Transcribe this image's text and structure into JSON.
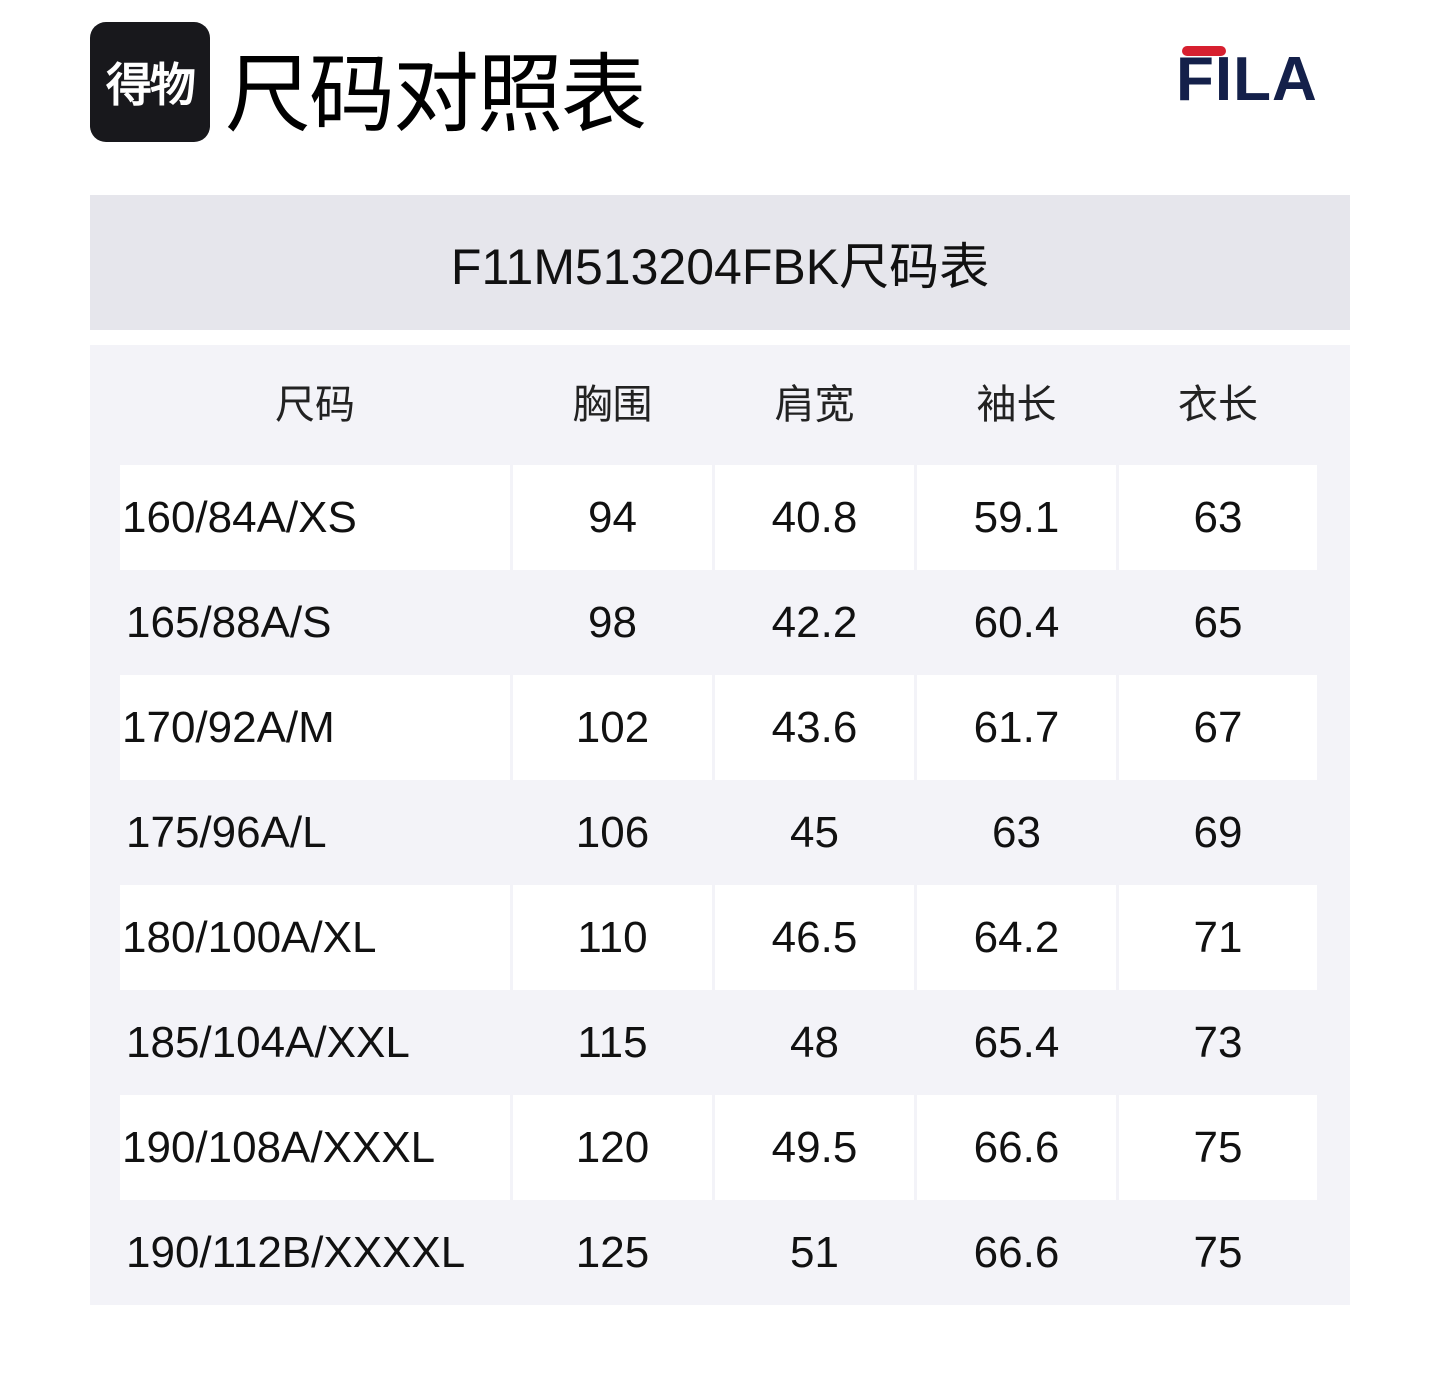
{
  "header": {
    "logo_text": "得物",
    "title": "尺码对照表",
    "brand_logo_text": "FILA",
    "brand_colors": {
      "red": "#d7202f",
      "navy": "#14204a"
    }
  },
  "chart_title": "F11M513204FBK尺码表",
  "table": {
    "columns": [
      "尺码",
      "胸围",
      "肩宽",
      "袖长",
      "衣长"
    ],
    "rows": [
      [
        "160/84A/XS",
        "94",
        "40.8",
        "59.1",
        "63"
      ],
      [
        "165/88A/S",
        "98",
        "42.2",
        "60.4",
        "65"
      ],
      [
        "170/92A/M",
        "102",
        "43.6",
        "61.7",
        "67"
      ],
      [
        "175/96A/L",
        "106",
        "45",
        "63",
        "69"
      ],
      [
        "180/100A/XL",
        "110",
        "46.5",
        "64.2",
        "71"
      ],
      [
        "185/104A/XXL",
        "115",
        "48",
        "65.4",
        "73"
      ],
      [
        "190/108A/XXXL",
        "120",
        "49.5",
        "66.6",
        "75"
      ],
      [
        "190/112B/XXXXL",
        "125",
        "51",
        "66.6",
        "75"
      ]
    ]
  }
}
